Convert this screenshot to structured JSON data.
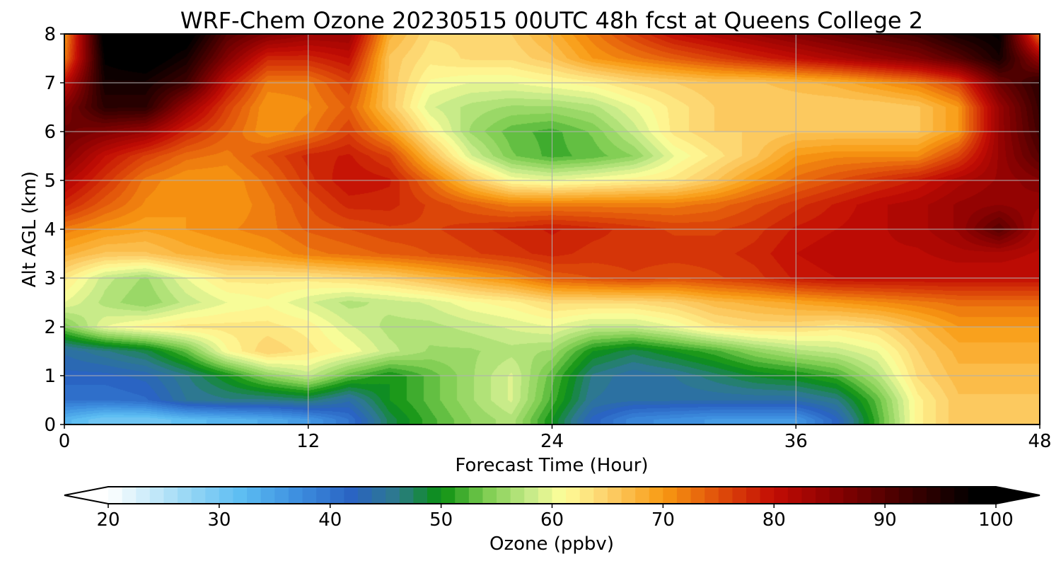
{
  "chart_data": {
    "type": "heatmap",
    "title": "WRF-Chem Ozone  20230515 00UTC 48h fcst at Queens College 2",
    "xlabel": "Forecast Time (Hour)",
    "ylabel": "Alt AGL (km)",
    "xlim": [
      0,
      48
    ],
    "ylim": [
      0,
      8
    ],
    "xticks": [
      0,
      12,
      24,
      36,
      48
    ],
    "yticks": [
      0,
      1,
      2,
      3,
      4,
      5,
      6,
      7,
      8
    ],
    "grid": true,
    "x": [
      0,
      2,
      4,
      6,
      8,
      10,
      12,
      14,
      16,
      18,
      20,
      22,
      24,
      26,
      28,
      30,
      32,
      34,
      36,
      38,
      40,
      42,
      44,
      46,
      48
    ],
    "y": [
      0.1,
      0.5,
      1.0,
      1.5,
      2.0,
      2.5,
      3.0,
      3.5,
      4.0,
      4.5,
      5.0,
      5.5,
      6.0,
      6.5,
      7.0,
      7.5,
      8.0
    ],
    "z": [
      [
        33,
        30,
        30,
        32,
        33,
        34,
        36,
        40,
        48,
        52,
        55,
        57,
        50,
        42,
        38,
        37,
        36,
        36,
        36,
        42,
        52,
        62,
        66,
        66,
        66
      ],
      [
        40,
        40,
        41,
        45,
        46,
        46,
        47,
        44,
        50,
        53,
        56,
        59,
        52,
        45,
        44,
        44,
        44,
        44,
        44,
        46,
        53,
        62,
        66,
        66,
        66
      ],
      [
        42,
        42,
        43,
        46,
        50,
        55,
        58,
        53,
        50,
        53,
        56,
        59,
        53,
        46,
        44,
        45,
        47,
        49,
        50,
        52,
        57,
        64,
        67,
        67,
        67
      ],
      [
        44,
        46,
        48,
        53,
        61,
        65,
        63,
        61,
        58,
        56,
        56,
        57,
        56,
        50,
        48,
        50,
        52,
        55,
        57,
        58,
        60,
        65,
        68,
        68,
        68
      ],
      [
        54,
        60,
        62,
        63,
        63,
        63,
        62,
        59,
        57,
        57,
        58,
        59,
        60,
        58,
        58,
        60,
        63,
        64,
        64,
        63,
        64,
        67,
        70,
        70,
        70
      ],
      [
        60,
        57,
        55,
        58,
        60,
        61,
        59,
        57,
        58,
        59,
        61,
        62,
        64,
        64,
        64,
        65,
        67,
        68,
        69,
        70,
        71,
        72,
        73,
        73,
        73
      ],
      [
        63,
        58,
        56,
        60,
        63,
        63,
        63,
        64,
        65,
        67,
        69,
        71,
        74,
        75,
        76,
        75,
        76,
        77,
        79,
        80,
        80,
        80,
        80,
        80,
        80
      ],
      [
        68,
        66,
        66,
        68,
        69,
        70,
        72,
        73,
        74,
        75,
        76,
        77,
        78,
        77,
        77,
        77,
        77,
        78,
        80,
        81,
        81,
        81,
        82,
        82,
        81
      ],
      [
        72,
        70,
        69,
        70,
        71,
        72,
        74,
        75,
        76,
        76,
        77,
        78,
        79,
        78,
        77,
        76,
        76,
        77,
        79,
        80,
        81,
        82,
        84,
        90,
        82
      ],
      [
        78,
        74,
        71,
        70,
        70,
        72,
        75,
        78,
        78,
        76,
        74,
        72,
        72,
        72,
        72,
        72,
        73,
        75,
        77,
        79,
        81,
        82,
        84,
        85,
        84
      ],
      [
        82,
        77,
        72,
        70,
        70,
        73,
        77,
        80,
        79,
        73,
        66,
        61,
        60,
        61,
        62,
        63,
        66,
        70,
        73,
        75,
        77,
        79,
        82,
        84,
        86
      ],
      [
        86,
        80,
        76,
        73,
        72,
        75,
        78,
        79,
        76,
        67,
        59,
        54,
        52,
        53,
        55,
        60,
        63,
        66,
        70,
        71,
        71,
        71,
        76,
        84,
        90
      ],
      [
        88,
        86,
        84,
        78,
        74,
        70,
        72,
        76,
        70,
        62,
        56,
        53,
        52,
        54,
        58,
        63,
        65,
        65,
        66,
        66,
        66,
        66,
        70,
        84,
        92
      ],
      [
        86,
        94,
        94,
        84,
        76,
        70,
        71,
        74,
        66,
        59,
        57,
        56,
        56,
        57,
        60,
        63,
        65,
        65,
        65,
        65,
        65,
        66,
        70,
        84,
        93
      ],
      [
        80,
        96,
        96,
        92,
        80,
        72,
        72,
        76,
        66,
        61,
        60,
        60,
        61,
        62,
        64,
        65,
        66,
        66,
        67,
        68,
        70,
        72,
        76,
        88,
        94
      ],
      [
        72,
        98,
        100,
        96,
        86,
        78,
        78,
        80,
        66,
        63,
        64,
        64,
        66,
        70,
        72,
        74,
        76,
        78,
        80,
        82,
        84,
        86,
        90,
        96,
        84
      ],
      [
        70,
        100,
        100,
        100,
        90,
        86,
        84,
        84,
        68,
        64,
        64,
        65,
        68,
        72,
        76,
        80,
        82,
        84,
        86,
        88,
        90,
        92,
        96,
        98,
        72
      ]
    ],
    "colorbar": {
      "label": "Ozone  (ppbv)",
      "min": 20,
      "max": 100,
      "ticks": [
        20,
        30,
        40,
        50,
        60,
        70,
        80,
        90,
        100
      ],
      "extend": "both",
      "stops": [
        [
          20,
          "#ffffff"
        ],
        [
          27,
          "#9ad8f5"
        ],
        [
          32,
          "#5cbdf2"
        ],
        [
          37,
          "#3d8fe0"
        ],
        [
          42,
          "#2a63c2"
        ],
        [
          46,
          "#2d7a8c"
        ],
        [
          50,
          "#0a9010"
        ],
        [
          54,
          "#7ccc50"
        ],
        [
          58,
          "#c6ea88"
        ],
        [
          61,
          "#fefe9a"
        ],
        [
          65,
          "#fdd06a"
        ],
        [
          70,
          "#f89a12"
        ],
        [
          75,
          "#e04e0a"
        ],
        [
          80,
          "#c20c04"
        ],
        [
          85,
          "#8e0202"
        ],
        [
          92,
          "#400000"
        ],
        [
          98,
          "#000000"
        ],
        [
          100,
          "#000000"
        ]
      ]
    }
  }
}
